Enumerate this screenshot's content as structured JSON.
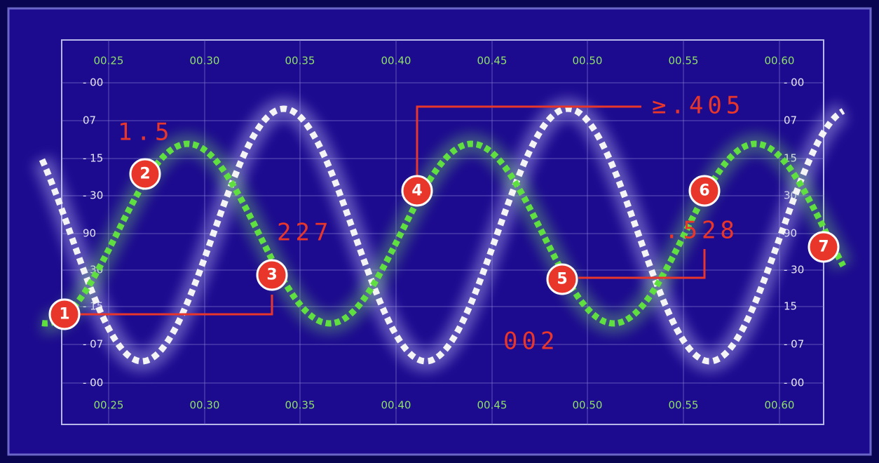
{
  "x_labels_top": [
    "00.25",
    "00.30",
    "00.35",
    "00.40",
    "00.45",
    "00.50",
    "00.55",
    "00.60"
  ],
  "x_labels_bottom": [
    "00.25",
    "00.30",
    "00.35",
    "00.40",
    "00.45",
    "00.50",
    "00.55",
    "00.60"
  ],
  "y_labels_left": [
    "- 00",
    "07",
    "- 15",
    "- 30",
    "90",
    "- 30",
    "- 15",
    "- 07",
    "- 00"
  ],
  "y_labels_right": [
    "- 00",
    "07",
    "15",
    "30",
    "90",
    "- 30",
    "15",
    "- 07",
    "- 00"
  ],
  "markers": [
    "1",
    "2",
    "3",
    "4",
    "5",
    "6",
    "7"
  ],
  "annotations": [
    "1.5",
    "227",
    "≥.405",
    ".528",
    "002"
  ]
}
